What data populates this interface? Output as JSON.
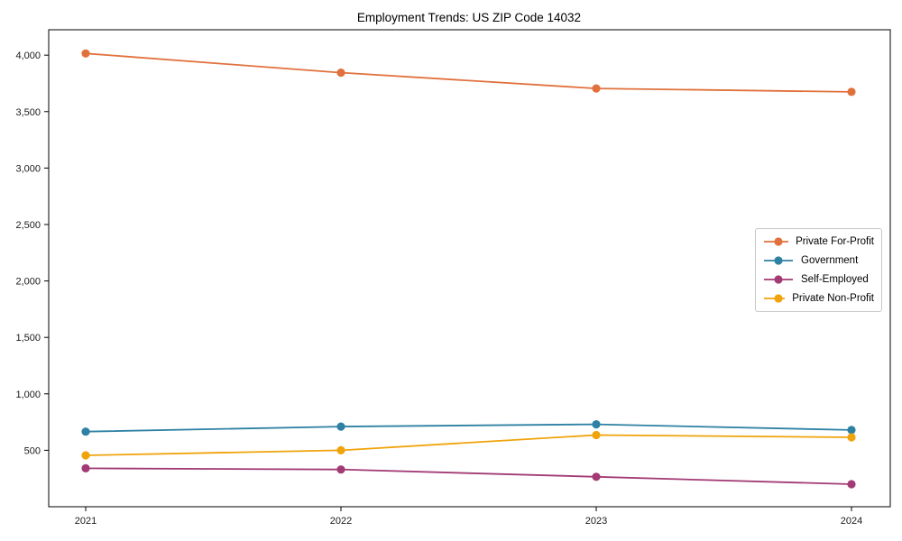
{
  "chart_data": {
    "type": "line",
    "title": "Employment Trends: US ZIP Code 14032",
    "x": [
      2021,
      2022,
      2023,
      2024
    ],
    "x_tick_labels": [
      "2021",
      "2022",
      "2023",
      "2024"
    ],
    "series": [
      {
        "name": "Private For-Profit",
        "color": "#e1713c",
        "values": [
          4015,
          3845,
          3705,
          3675
        ]
      },
      {
        "name": "Government",
        "color": "#2e81a3",
        "values": [
          665,
          710,
          730,
          680
        ]
      },
      {
        "name": "Self-Employed",
        "color": "#a23a74",
        "values": [
          340,
          330,
          265,
          200
        ]
      },
      {
        "name": "Private Non-Profit",
        "color": "#f0a30b",
        "values": [
          455,
          500,
          635,
          615
        ]
      }
    ],
    "y_ticks": [
      500,
      1000,
      1500,
      2000,
      2500,
      3000,
      3500,
      4000
    ],
    "y_tick_labels": [
      "500",
      "1,000",
      "1,500",
      "2,000",
      "2,500",
      "3,000",
      "3,500",
      "4,000"
    ],
    "ylim": [
      0,
      4225
    ],
    "xlabel": "",
    "ylabel": "",
    "grid": false,
    "marker": "circle",
    "legend": {
      "position": "right",
      "entries": [
        "Private For-Profit",
        "Government",
        "Self-Employed",
        "Private Non-Profit"
      ]
    },
    "axis_color": "#000000",
    "tick_label_color": "#1a1a1a"
  }
}
